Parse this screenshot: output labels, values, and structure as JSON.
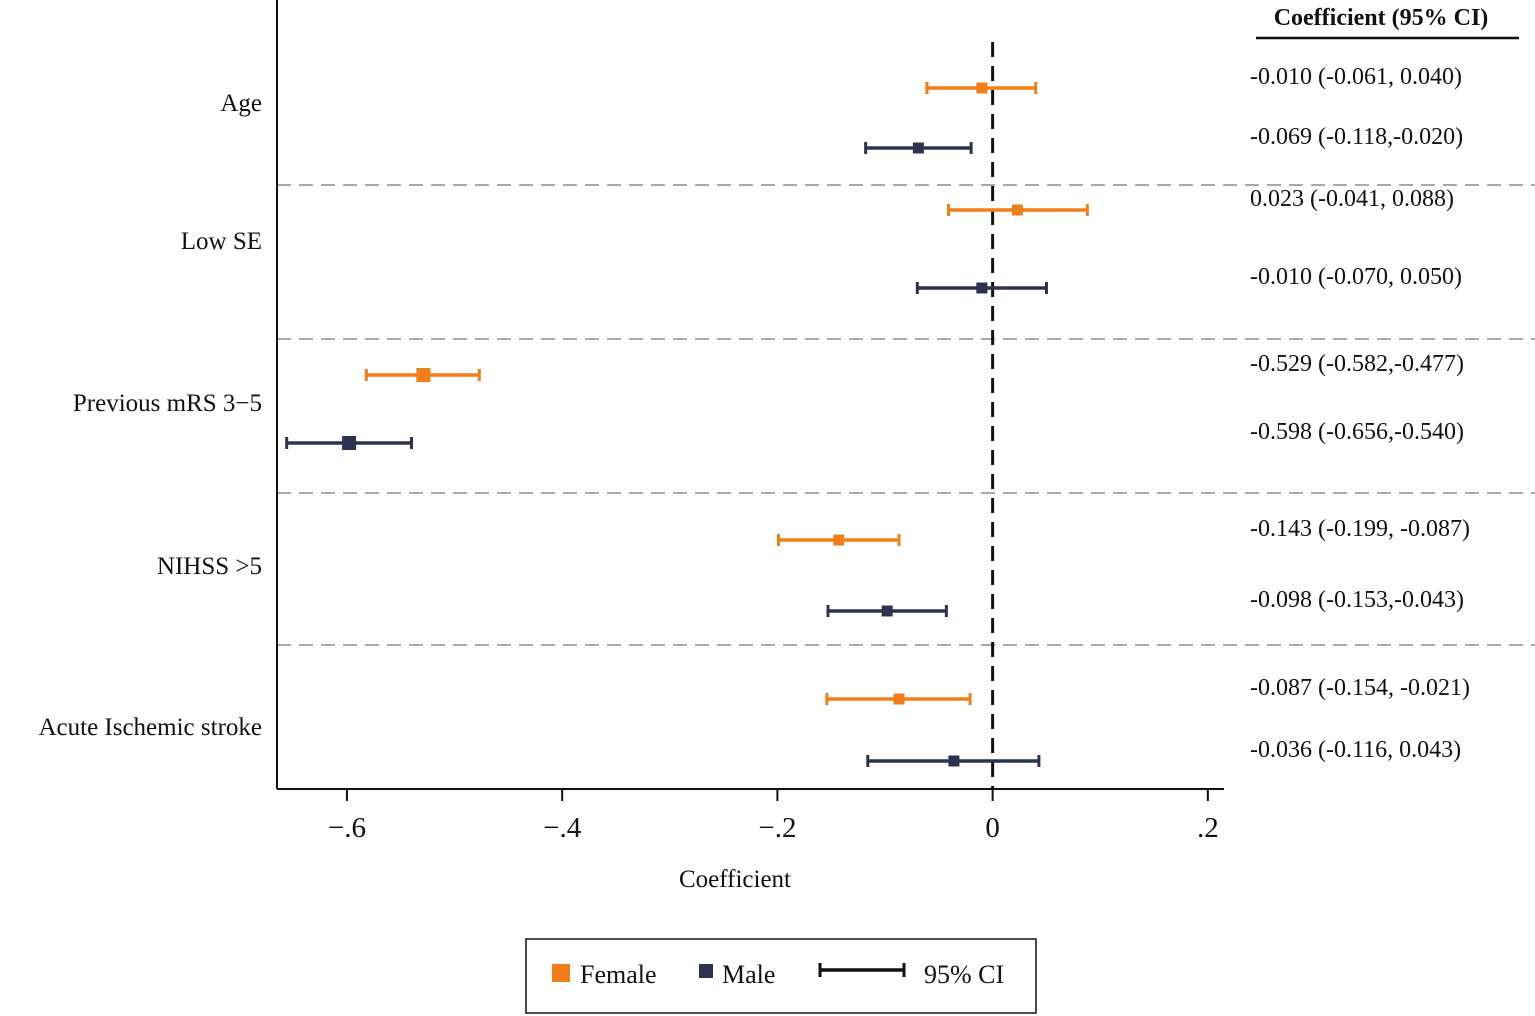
{
  "chart_data": {
    "type": "forest",
    "xlabel": "Coefficient",
    "xlim": [
      -0.665,
      0.215
    ],
    "x_ticks": [
      -0.6,
      -0.4,
      -0.2,
      0,
      0.2
    ],
    "x_tick_labels": [
      "−.6",
      "−.4",
      "−.2",
      "0",
      ".2"
    ],
    "reference_line": 0,
    "table_header": "Coefficient (95% CI)",
    "series_colors": {
      "Female": "#f07f1a",
      "Male": "#2c3350"
    },
    "groups": [
      {
        "label": "Age",
        "rows": [
          {
            "series": "Female",
            "estimate": -0.01,
            "lower": -0.061,
            "upper": 0.04,
            "text": "-0.010  (-0.061, 0.040)"
          },
          {
            "series": "Male",
            "estimate": -0.069,
            "lower": -0.118,
            "upper": -0.02,
            "text": "-0.069  (-0.118,-0.020)"
          }
        ]
      },
      {
        "label": "Low SE",
        "rows": [
          {
            "series": "Female",
            "estimate": 0.023,
            "lower": -0.041,
            "upper": 0.088,
            "text": "0.023  (-0.041, 0.088)"
          },
          {
            "series": "Male",
            "estimate": -0.01,
            "lower": -0.07,
            "upper": 0.05,
            "text": "-0.010  (-0.070, 0.050)"
          }
        ]
      },
      {
        "label": "Previous mRS 3−5",
        "rows": [
          {
            "series": "Female",
            "estimate": -0.529,
            "lower": -0.582,
            "upper": -0.477,
            "text": "-0.529  (-0.582,-0.477)"
          },
          {
            "series": "Male",
            "estimate": -0.598,
            "lower": -0.656,
            "upper": -0.54,
            "text": "-0.598  (-0.656,-0.540)"
          }
        ]
      },
      {
        "label": "NIHSS >5",
        "rows": [
          {
            "series": "Female",
            "estimate": -0.143,
            "lower": -0.199,
            "upper": -0.087,
            "text": "-0.143  (-0.199, -0.087)"
          },
          {
            "series": "Male",
            "estimate": -0.098,
            "lower": -0.153,
            "upper": -0.043,
            "text": "-0.098  (-0.153,-0.043)"
          }
        ]
      },
      {
        "label": "Acute Ischemic stroke",
        "rows": [
          {
            "series": "Female",
            "estimate": -0.087,
            "lower": -0.154,
            "upper": -0.021,
            "text": "-0.087  (-0.154, -0.021)"
          },
          {
            "series": "Male",
            "estimate": -0.036,
            "lower": -0.116,
            "upper": 0.043,
            "text": "-0.036  (-0.116, 0.043)"
          }
        ]
      }
    ],
    "legend": {
      "items": [
        {
          "label": "Female",
          "type": "square",
          "series": "Female"
        },
        {
          "label": "Male",
          "type": "square",
          "series": "Male"
        },
        {
          "label": "95% CI",
          "type": "ci"
        }
      ],
      "placement": "bottom-center"
    }
  }
}
